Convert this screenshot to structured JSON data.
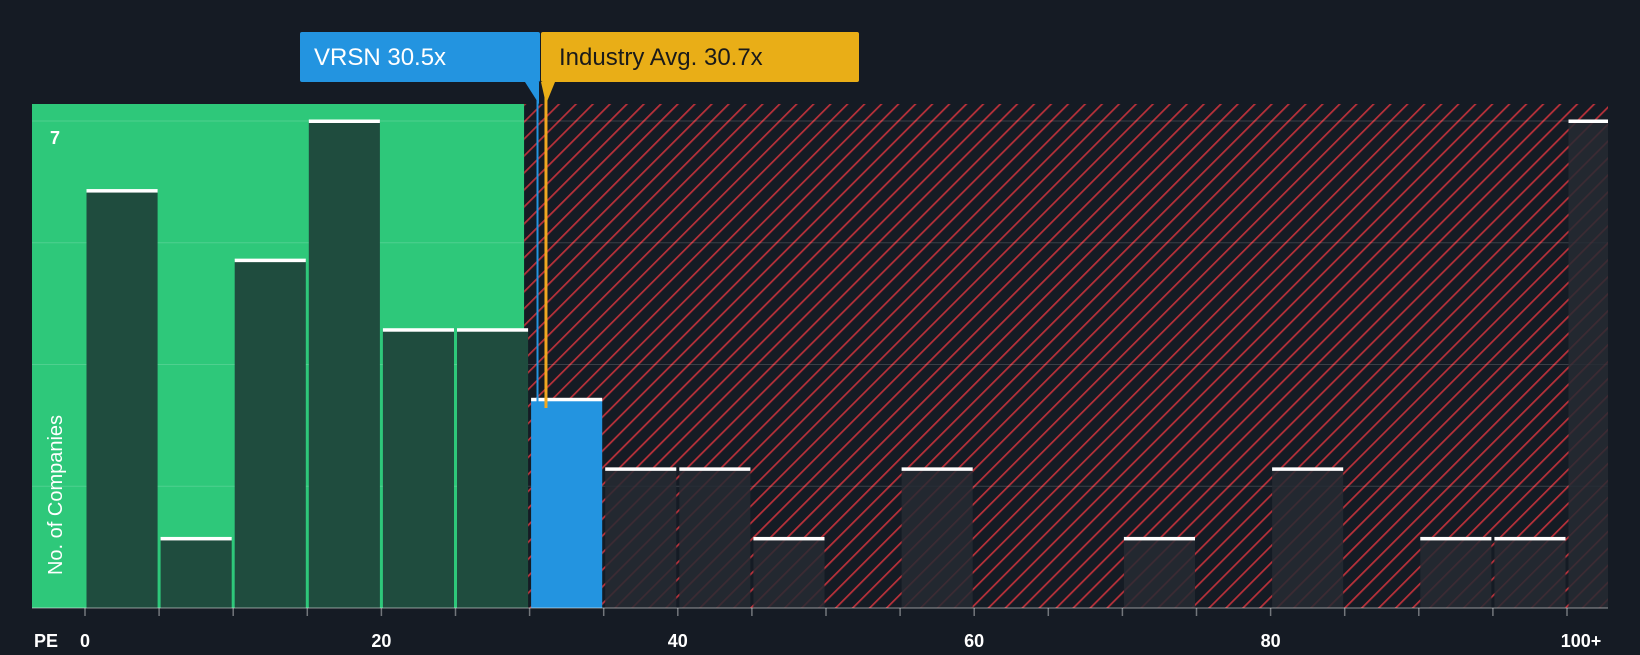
{
  "chart_data": {
    "type": "bar",
    "title": "",
    "xlabel": "PE",
    "ylabel": "No. of Companies",
    "x_bin_width": 5,
    "bins": [
      {
        "start": 0,
        "value": 6
      },
      {
        "start": 5,
        "value": 1
      },
      {
        "start": 10,
        "value": 5
      },
      {
        "start": 15,
        "value": 7
      },
      {
        "start": 20,
        "value": 4
      },
      {
        "start": 25,
        "value": 4
      },
      {
        "start": 30,
        "value": 3,
        "highlight": true
      },
      {
        "start": 35,
        "value": 2
      },
      {
        "start": 40,
        "value": 2
      },
      {
        "start": 45,
        "value": 1
      },
      {
        "start": 50,
        "value": 0
      },
      {
        "start": 55,
        "value": 2
      },
      {
        "start": 60,
        "value": 0
      },
      {
        "start": 65,
        "value": 0
      },
      {
        "start": 70,
        "value": 1
      },
      {
        "start": 75,
        "value": 0
      },
      {
        "start": 80,
        "value": 2
      },
      {
        "start": 85,
        "value": 0
      },
      {
        "start": 90,
        "value": 1
      },
      {
        "start": 95,
        "value": 1
      },
      {
        "start": 100,
        "value": 7
      }
    ],
    "x_ticks": [
      {
        "value": 0,
        "label": "0"
      },
      {
        "value": 20,
        "label": "20"
      },
      {
        "value": 40,
        "label": "40"
      },
      {
        "value": 60,
        "label": "60"
      },
      {
        "value": 80,
        "label": "80"
      },
      {
        "value": 100,
        "label": "100+"
      }
    ],
    "y_max_label": "7",
    "ylim": [
      0,
      7
    ],
    "fair_zone_max": 29.5,
    "company": {
      "ticker": "VRSN",
      "pe": 30.5,
      "label": "VRSN 30.5x"
    },
    "industry": {
      "pe": 30.7,
      "label": "Industry Avg. 30.7x"
    },
    "colors": {
      "background": "#151b24",
      "fair_zone": "#2ec87a",
      "fair_bar": "#1f4c3e",
      "highlight_bar": "#2394e0",
      "over_hatch": "#b8313a",
      "over_bar": "#262a32",
      "bar_cap": "#ffffff",
      "company_label": "#2394e0",
      "industry_label": "#e9ae17",
      "industry_line": "#f0a820",
      "text": "#ffffff"
    }
  }
}
